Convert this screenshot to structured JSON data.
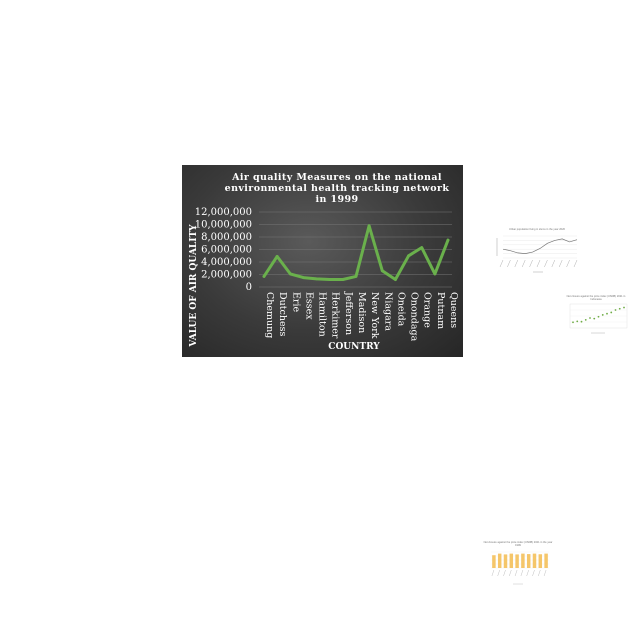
{
  "chart_data": [
    {
      "type": "line",
      "title": "Air quality Measures on the national environmental health tracking network in 1999",
      "xlabel": "COUNTRY",
      "ylabel": "VALUE OF AIR QUALITY",
      "categories": [
        "Chemung",
        "Dutchess",
        "Erie",
        "Essex",
        "Hamilton",
        "Herkimer",
        "Jefferson",
        "Madison",
        "New York",
        "Niagara",
        "Oneida",
        "Onondaga",
        "Orange",
        "Putnam",
        "Queens"
      ],
      "series": [
        {
          "values": [
            1700000,
            4900000,
            2100000,
            1500000,
            1300000,
            1200000,
            1200000,
            1700000,
            9800000,
            2600000,
            1200000,
            5000000,
            6300000,
            2100000,
            7500000
          ]
        }
      ],
      "ylim": [
        0,
        12000000
      ],
      "yticks": [
        "0",
        "2,000,000",
        "4,000,000",
        "6,000,000",
        "8,000,000",
        "10,000,000",
        "12,000,000"
      ],
      "line_color": "#6ab04c",
      "grid": true
    },
    {
      "type": "line",
      "title": "Urban population living in slums in the year 2020",
      "series": [
        {
          "values": [
            62,
            60,
            57,
            56,
            58,
            63,
            70,
            74,
            76,
            72,
            75
          ]
        }
      ],
      "line_color": "#777777"
    },
    {
      "type": "scatter",
      "title": "Net closure against the price index (USDB) 2021 in Indonesia",
      "series": [
        {
          "values": [
            12,
            15,
            14,
            20,
            26,
            24,
            30,
            36,
            40,
            44,
            52,
            56,
            60
          ]
        }
      ],
      "line_color": "#70ad47"
    },
    {
      "type": "bar",
      "title": "Net closure against the price index (USDB) 2021 in the year 1999",
      "categories": [
        "",
        "",
        "",
        "",
        "",
        "",
        "",
        "",
        "",
        ""
      ],
      "values": [
        8,
        9,
        8.5,
        9,
        8.5,
        9,
        8.7,
        9,
        8.6,
        9
      ],
      "bar_color": "#f5c66a"
    }
  ]
}
